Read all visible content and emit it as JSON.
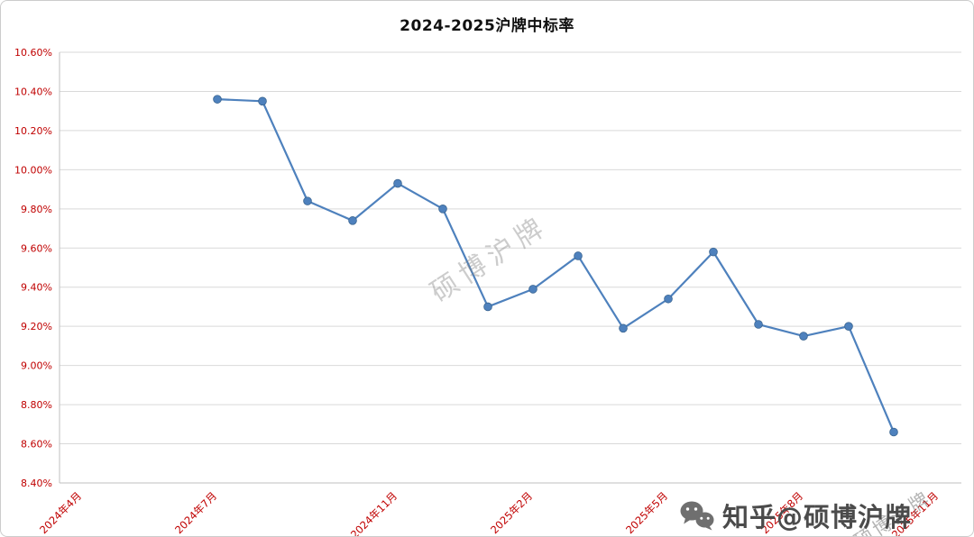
{
  "chart_data": {
    "type": "line",
    "title": "2024-2025沪牌中标率",
    "xlabel": "",
    "ylabel": "",
    "ylim": [
      8.4,
      10.6
    ],
    "y_tick_step": 0.2,
    "y_tick_labels": [
      "8.40%",
      "8.60%",
      "8.80%",
      "9.00%",
      "9.20%",
      "9.40%",
      "9.60%",
      "9.80%",
      "10.00%",
      "10.20%",
      "10.40%",
      "10.60%"
    ],
    "grid": true,
    "legend_position": "none",
    "line_color": "#4E81BD",
    "marker_color": "#4E81BD",
    "marker_edge_color": "#3A6591",
    "grid_color": "#D9D9D9",
    "axis_color": "#BFBFBF",
    "tick_label_color": "#C00000",
    "x_ticks": [
      {
        "label": "2024年4月",
        "offset": 0
      },
      {
        "label": "2024年7月",
        "offset": 3
      },
      {
        "label": "2024年11月",
        "offset": 7
      },
      {
        "label": "2025年2月",
        "offset": 10
      },
      {
        "label": "2025年5月",
        "offset": 13
      },
      {
        "label": "2025年8月",
        "offset": 16
      },
      {
        "label": "2025年11月",
        "offset": 19
      }
    ],
    "series": [
      {
        "name": "沪牌中标率",
        "points": [
          {
            "label": "2024年7月",
            "offset": 3,
            "value": 10.36
          },
          {
            "label": "2024年8月",
            "offset": 4,
            "value": 10.35
          },
          {
            "label": "2024年9月",
            "offset": 5,
            "value": 9.84
          },
          {
            "label": "2024年10月",
            "offset": 6,
            "value": 9.74
          },
          {
            "label": "2024年11月",
            "offset": 7,
            "value": 9.93
          },
          {
            "label": "2024年12月",
            "offset": 8,
            "value": 9.8
          },
          {
            "label": "2025年1月",
            "offset": 9,
            "value": 9.3
          },
          {
            "label": "2025年2月",
            "offset": 10,
            "value": 9.39
          },
          {
            "label": "2025年3月",
            "offset": 11,
            "value": 9.56
          },
          {
            "label": "2025年4月",
            "offset": 12,
            "value": 9.19
          },
          {
            "label": "2025年5月",
            "offset": 13,
            "value": 9.34
          },
          {
            "label": "2025年6月",
            "offset": 14,
            "value": 9.58
          },
          {
            "label": "2025年7月",
            "offset": 15,
            "value": 9.21
          },
          {
            "label": "2025年8月",
            "offset": 16,
            "value": 9.15
          },
          {
            "label": "2025年9月",
            "offset": 17,
            "value": 9.2
          },
          {
            "label": "2025年10月",
            "offset": 18,
            "value": 8.66
          }
        ]
      }
    ]
  },
  "watermarks": {
    "center": "硕博沪牌",
    "corner": "硕博沪牌",
    "badge": "知乎@硕博沪牌"
  }
}
